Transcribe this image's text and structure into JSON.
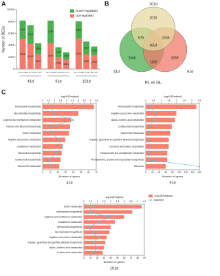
{
  "chart_data": [
    {
      "type": "stacked_bar",
      "label": "A",
      "ylabel": "Number of DEGs",
      "groups": [
        "41d",
        "91d",
        "101d"
      ],
      "categories": [
        "PL vs GL",
        "F vs GL",
        "PL vs F",
        "PL vs GL",
        "F vs GL",
        "PL vs F",
        "PL vs GL",
        "F vs GL",
        "PL vs F"
      ],
      "series": [
        {
          "name": "Down-regulated",
          "color": "#4caf50",
          "values": [
            3123,
            3193,
            1859,
            3795,
            1719,
            1258,
            2903,
            2134,
            1454
          ]
        },
        {
          "name": "Up-regulated",
          "color": "#f07b6b",
          "values": [
            5046,
            4193,
            2491,
            4363,
            1949,
            1561,
            5134,
            2490,
            2340
          ]
        }
      ],
      "ylim": [
        0,
        10000
      ],
      "yticks": [
        0,
        2000,
        4000,
        6000,
        8000,
        10000
      ],
      "legend": "upper right"
    },
    {
      "type": "venn",
      "label": "B",
      "title": "PL vs GL",
      "sets": [
        {
          "name": "41d",
          "color": "#4caf50"
        },
        {
          "name": "91d",
          "color": "#f07b6b"
        },
        {
          "name": "101d",
          "color": "#e6d9a0"
        }
      ],
      "values": [
        2446,
        3359,
        2019,
        1106,
        679,
        1539,
        4054
      ]
    },
    {
      "type": "combo_hbar",
      "label": "C",
      "title": "41d",
      "xlabel": "-log10(Padjust)",
      "x2label": "Number of genes",
      "categories": [
        "Anthocyanin biosynthesis",
        "Glucosinolate biosynthesis",
        "Cysteine and methionine metabolism",
        "Flavone and flavonol biosynthesis",
        "Sulfur metabolism",
        "Arginine and proline metabolism",
        "Glutathione metabolism",
        "Flavonoid biosynthesis",
        "Isoflavonoid biosynthesis",
        "Vitamin B6 metabolism"
      ],
      "series": [
        {
          "name": "-log10(Padjust)",
          "color": "#f4826f",
          "values": [
            4.3,
            3.0,
            2.4,
            2.3,
            2.2,
            1.9,
            1.7,
            1.6,
            1.5,
            1.4
          ]
        },
        {
          "name": "Number",
          "color": "#5bc0de",
          "axis": "x2",
          "values": [
            12,
            14,
            40,
            10,
            12,
            22,
            25,
            18,
            8,
            10
          ]
        }
      ],
      "xlim": [
        0,
        4.5
      ],
      "xticks": [
        0,
        0.5,
        1,
        1.5,
        2,
        2.5,
        3,
        3.5,
        4,
        4.5
      ],
      "x2lim": [
        0,
        70
      ],
      "x2ticks": [
        0,
        10,
        20,
        30,
        40,
        50,
        60,
        70
      ]
    },
    {
      "type": "combo_hbar",
      "title": "91d",
      "xlabel": "-log10(Padjust)",
      "x2label": "Number of genes",
      "categories": [
        "Anthocyanin biosynthesis",
        "Arginine and proline metabolism",
        "alpha-Linolenic acid metabolism",
        "Isoflavonoid biosynthesis",
        "Vitamin B6 metabolism",
        "Tropane, piperidine and pyridine alkaloid biosynthesis",
        "Limonene and pinene degradation",
        "Phosphonate and phosphinate metabolism",
        "Phenylalanine, tyrosine and tryptophan biosynthesis",
        "Ribosome"
      ],
      "series": [
        {
          "name": "-log10(Padjust)",
          "color": "#f4826f",
          "values": [
            3.3,
            2.0,
            1.9,
            1.7,
            1.6,
            1.5,
            1.5,
            1.4,
            1.4,
            1.3
          ]
        },
        {
          "name": "Number",
          "color": "#5bc0de",
          "axis": "x2",
          "values": [
            12,
            30,
            25,
            10,
            9,
            8,
            12,
            8,
            10,
            160
          ]
        }
      ],
      "xlim": [
        0,
        3.5
      ],
      "xticks": [
        0,
        0.5,
        1,
        1.5,
        2,
        2.5,
        3,
        3.5
      ],
      "x2lim": [
        0,
        160
      ],
      "x2ticks": [
        0,
        20,
        40,
        60,
        80,
        100,
        120,
        140,
        160
      ]
    },
    {
      "type": "combo_hbar",
      "title": "101d",
      "xlabel": "-log10(Padjust)",
      "x2label": "Number of genes",
      "legend": "right",
      "categories": [
        "Sulfur metabolism",
        "Anthocyanin biosynthesis",
        "Cysteine and methionine metabolism",
        "Glutathione metabolism",
        "Diterpenoid biosynthesis",
        "Glucosinolate biosynthesis",
        "Arginine and proline metabolism",
        "Tropane, piperidine and pyridine alkaloid biosynthesis",
        "alpha-Linolenic acid metabolism",
        "Linoleic acid metabolism"
      ],
      "series": [
        {
          "name": "-log10(Padjust)",
          "color": "#f4826f",
          "values": [
            4.3,
            3.6,
            3.0,
            2.3,
            2.0,
            1.9,
            1.7,
            1.6,
            1.5,
            1.4
          ]
        },
        {
          "name": "Number",
          "color": "#5bc0de",
          "axis": "x2",
          "values": [
            10,
            10,
            38,
            22,
            8,
            12,
            22,
            14,
            20,
            14
          ]
        }
      ],
      "xlim": [
        0,
        4.5
      ],
      "xticks": [
        0,
        0.5,
        1,
        1.5,
        2,
        2.5,
        3,
        3.5,
        4,
        4.5
      ],
      "x2lim": [
        0,
        90
      ],
      "x2ticks": [
        0,
        10,
        20,
        30,
        40,
        50,
        60,
        70,
        80,
        90
      ]
    }
  ]
}
